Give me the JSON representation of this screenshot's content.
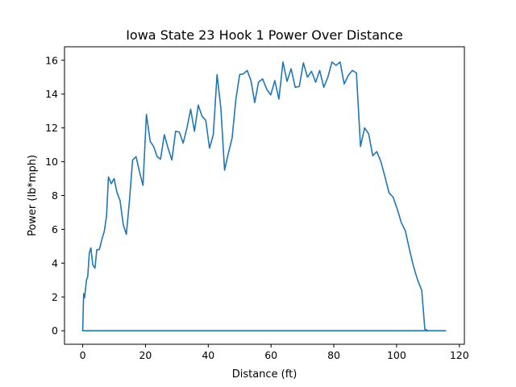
{
  "chart_data": {
    "type": "line",
    "title": "Iowa State 23 Hook 1 Power Over Distance",
    "xlabel": "Distance (ft)",
    "ylabel": "Power (lb*mph)",
    "xlim": [
      -5.8,
      121.6
    ],
    "ylim": [
      -0.8,
      16.8
    ],
    "xticks": [
      0,
      20,
      40,
      60,
      80,
      100,
      120
    ],
    "yticks": [
      0,
      2,
      4,
      6,
      8,
      10,
      12,
      14,
      16
    ],
    "grid": false,
    "legend": "none",
    "series": [
      {
        "color": "#1f77b4",
        "x": [
          0,
          0.3,
          0.6,
          1.2,
          1.6,
          2.1,
          2.6,
          3.2,
          3.9,
          4.5,
          5.3,
          6.1,
          6.9,
          7.6,
          8.2,
          9.1,
          10.0,
          10.9,
          11.9,
          12.9,
          13.9,
          14.9,
          15.9,
          17.0,
          18.1,
          19.2,
          20.3,
          21.5,
          22.6,
          23.7,
          24.8,
          26.0,
          27.2,
          28.4,
          29.6,
          30.8,
          32.0,
          33.2,
          34.4,
          35.6,
          36.8,
          38.0,
          39.2,
          40.4,
          41.6,
          42.8,
          44.0,
          45.2,
          46.4,
          47.6,
          48.8,
          50.0,
          51.2,
          52.4,
          53.6,
          54.8,
          56.0,
          57.3,
          58.6,
          59.9,
          61.2,
          62.5,
          63.8,
          65.1,
          66.4,
          67.7,
          69.0,
          70.3,
          71.6,
          72.9,
          74.2,
          75.5,
          76.8,
          78.1,
          79.4,
          80.7,
          82.0,
          83.3,
          84.6,
          85.9,
          87.2,
          88.5,
          89.8,
          91.1,
          92.4,
          93.7,
          95.0,
          96.3,
          97.6,
          98.9,
          100.2,
          101.5,
          102.8,
          104.1,
          105.4,
          106.7,
          108.0,
          109.0,
          110.0,
          111.0,
          112.0,
          112.8,
          113.5,
          114.1,
          114.6,
          115.0,
          115.2,
          115.4,
          115.5,
          115.6,
          115.6,
          0
        ],
        "y": [
          0,
          2.2,
          1.95,
          3.0,
          3.2,
          4.6,
          4.9,
          3.9,
          3.7,
          4.8,
          4.8,
          5.4,
          5.9,
          6.8,
          9.1,
          8.7,
          9.0,
          8.2,
          7.7,
          6.3,
          5.7,
          7.7,
          10.1,
          10.3,
          9.4,
          8.6,
          12.8,
          11.2,
          10.9,
          10.3,
          10.15,
          11.6,
          10.8,
          10.1,
          11.8,
          11.75,
          11.1,
          12.0,
          13.1,
          11.8,
          13.35,
          12.7,
          12.45,
          10.8,
          11.6,
          15.15,
          13.2,
          9.5,
          10.5,
          11.4,
          13.7,
          15.15,
          15.2,
          15.4,
          14.8,
          13.5,
          14.7,
          14.9,
          14.3,
          13.95,
          14.8,
          13.7,
          15.9,
          14.75,
          15.5,
          14.4,
          14.45,
          15.85,
          15.0,
          15.35,
          14.7,
          15.4,
          14.4,
          15.0,
          15.9,
          15.7,
          15.9,
          14.6,
          15.1,
          15.4,
          15.25,
          10.9,
          12.0,
          11.65,
          10.35,
          10.6,
          10.0,
          9.1,
          8.15,
          7.9,
          7.2,
          6.4,
          5.9,
          4.8,
          3.8,
          3.0,
          2.4,
          0.1,
          0,
          0,
          0,
          0,
          0,
          0,
          0,
          0,
          0,
          0,
          0,
          0,
          0,
          0
        ]
      }
    ]
  }
}
